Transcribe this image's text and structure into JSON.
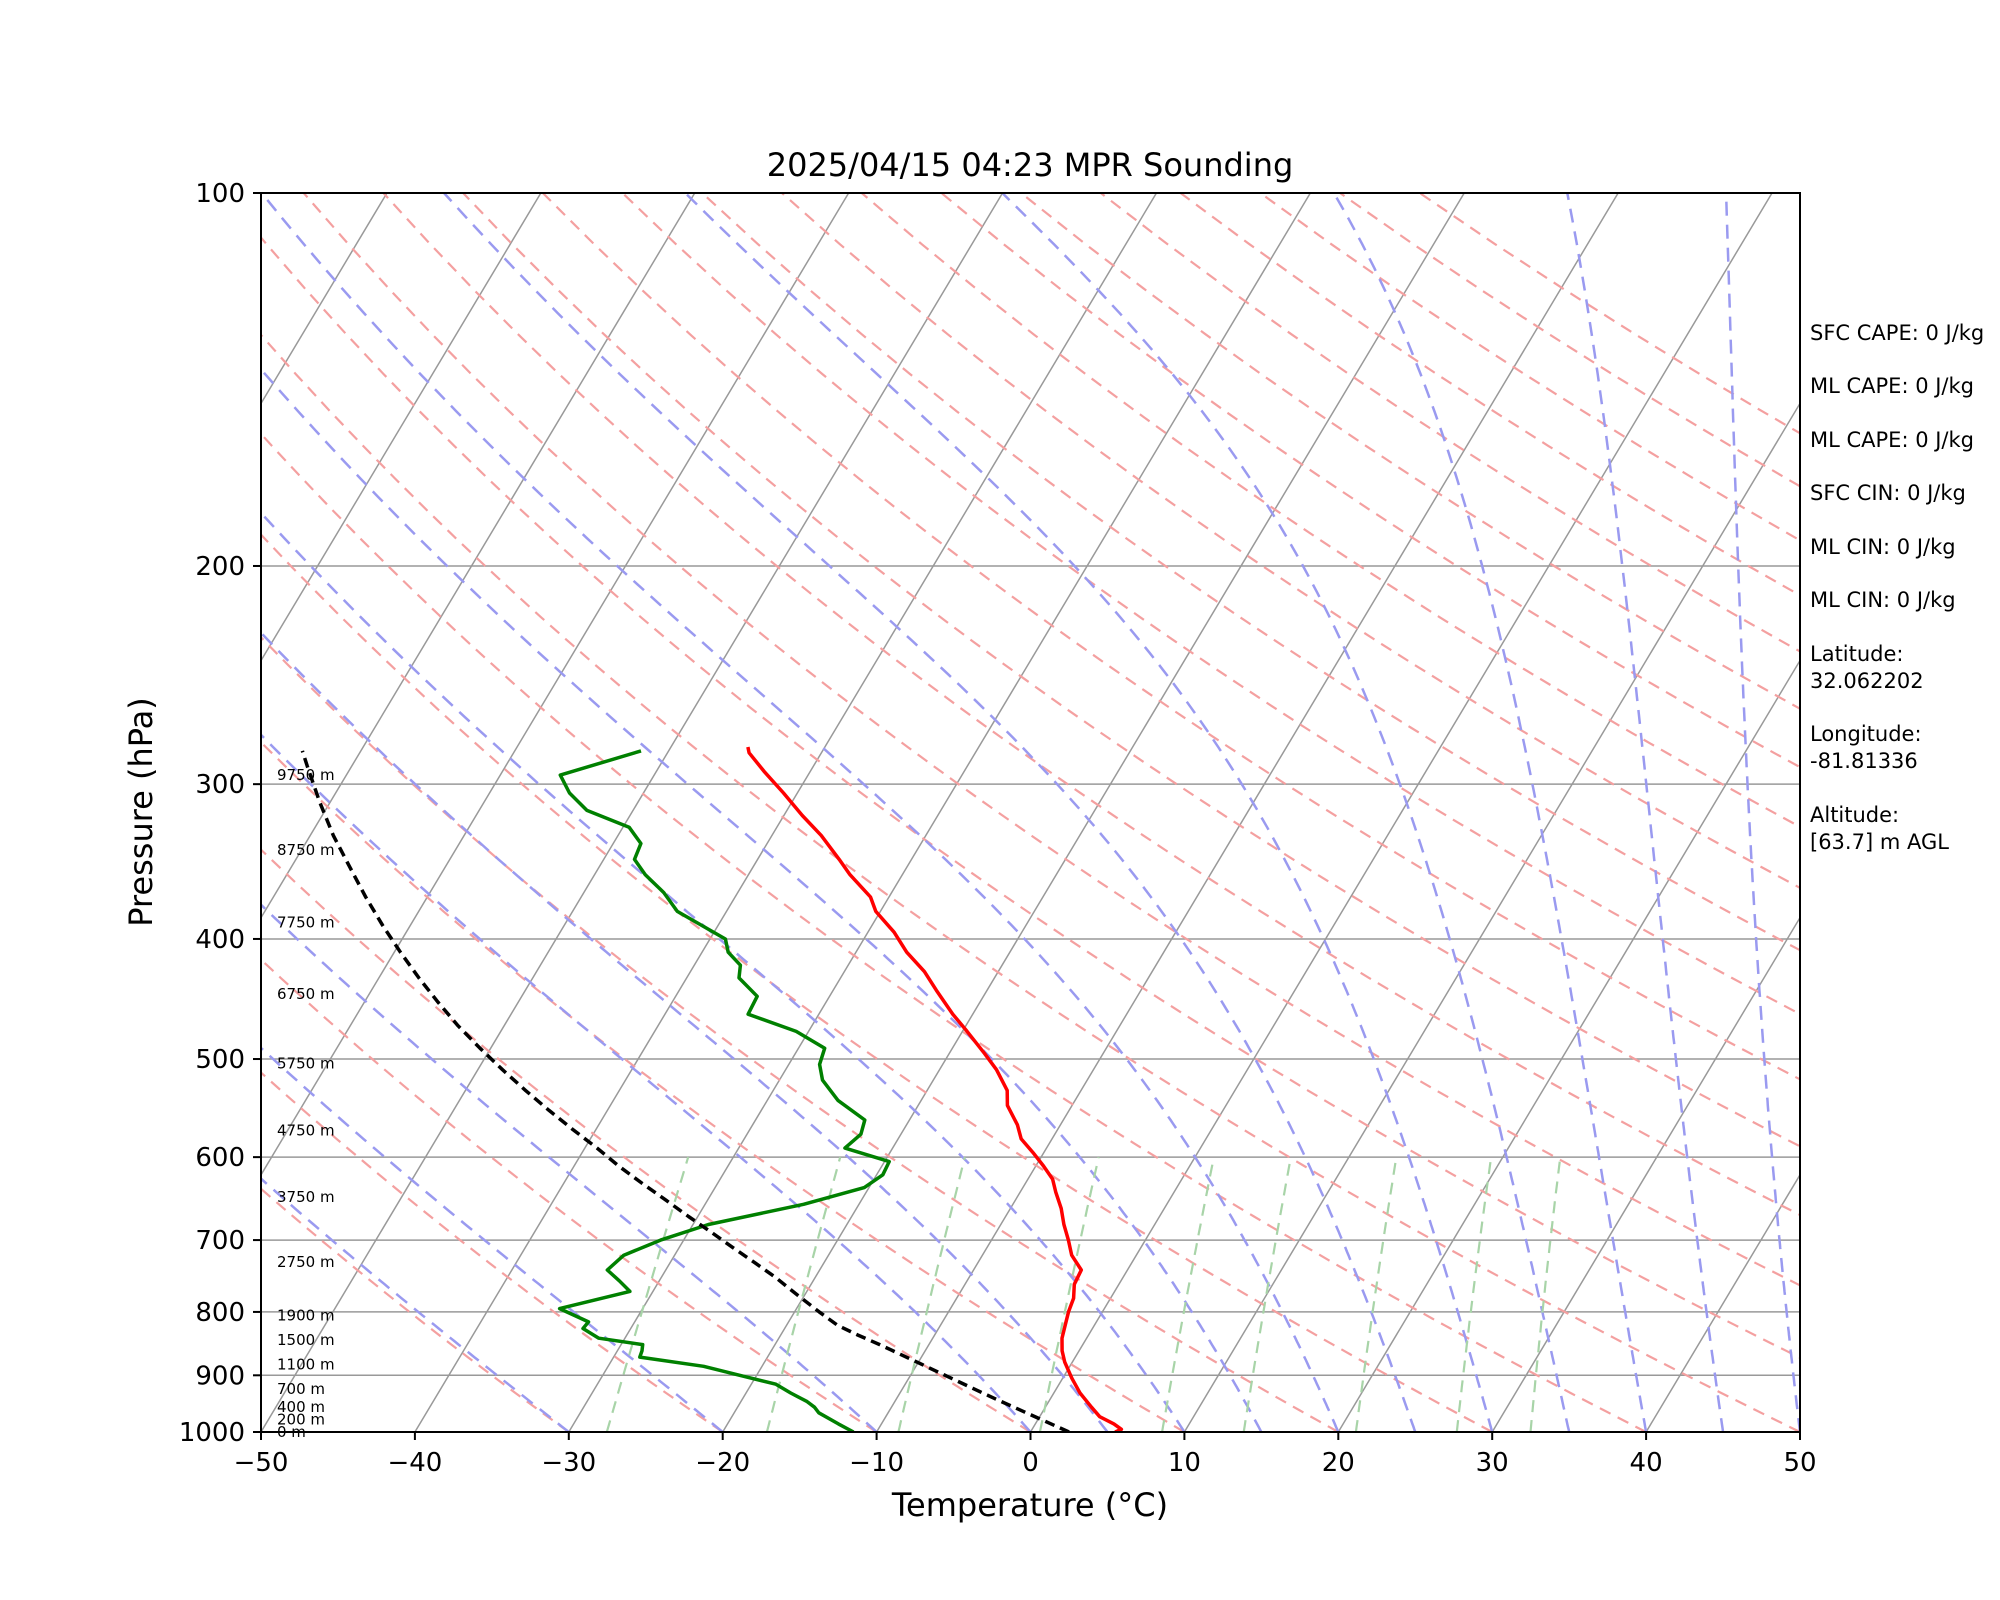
{
  "chart_data": {
    "type": "line",
    "title": "2025/04/15 04:23 MPR Sounding",
    "xlabel": "Temperature (°C)",
    "ylabel": "Pressure (hPa)",
    "xlim": [
      -50,
      50
    ],
    "ylim": [
      1000,
      100
    ],
    "y_scale": "log",
    "x_ticks": [
      "−50",
      "−40",
      "−30",
      "−20",
      "−10",
      "0",
      "10",
      "20",
      "30",
      "40",
      "50"
    ],
    "x_tick_values": [
      -50,
      -40,
      -30,
      -20,
      -10,
      0,
      10,
      20,
      30,
      40,
      50
    ],
    "y_ticks": [
      1000,
      900,
      800,
      700,
      600,
      500,
      400,
      300,
      200,
      100
    ],
    "y_grid": [
      1000,
      900,
      800,
      700,
      600,
      500,
      400,
      300,
      200,
      100
    ],
    "skew_isotherms_deg": [
      -150,
      -140,
      -130,
      -120,
      -110,
      -100,
      -90,
      -80,
      -70,
      -60,
      -50,
      -40,
      -30,
      -20,
      -10,
      0,
      10,
      20,
      30,
      40,
      50
    ],
    "dry_adiabats_c": [
      -30,
      -20,
      -10,
      0,
      10,
      20,
      30,
      40,
      50,
      60,
      70,
      80,
      90,
      100,
      110,
      120,
      130,
      140,
      150,
      160,
      170,
      180,
      190,
      200,
      210
    ],
    "moist_adiabats_c": [
      -30,
      -20,
      -10,
      0,
      5,
      10,
      15,
      20,
      25,
      30,
      35,
      40,
      45,
      50
    ],
    "mixing_ratios_gkg": [
      0.4,
      1,
      2,
      4,
      7,
      10,
      16,
      24,
      32
    ],
    "series": [
      {
        "color": "#ff0000",
        "points": [
          [
            5.5,
            1000
          ],
          [
            5.8,
            995
          ],
          [
            5.1,
            985
          ],
          [
            3.9,
            972
          ],
          [
            3.0,
            955
          ],
          [
            1.7,
            930
          ],
          [
            0.6,
            905
          ],
          [
            -0.5,
            878
          ],
          [
            -1.1,
            860
          ],
          [
            -1.6,
            840
          ],
          [
            -1.9,
            820
          ],
          [
            -2.2,
            800
          ],
          [
            -2.4,
            780
          ],
          [
            -2.9,
            760
          ],
          [
            -3.0,
            740
          ],
          [
            -4.2,
            720
          ],
          [
            -5.0,
            700
          ],
          [
            -5.9,
            680
          ],
          [
            -6.7,
            660
          ],
          [
            -7.7,
            640
          ],
          [
            -8.4,
            625
          ],
          [
            -9.5,
            610
          ],
          [
            -10.7,
            595
          ],
          [
            -12.0,
            580
          ],
          [
            -12.8,
            565
          ],
          [
            -14.2,
            545
          ],
          [
            -14.8,
            530
          ],
          [
            -16.3,
            510
          ],
          [
            -17.7,
            495
          ],
          [
            -19.7,
            475
          ],
          [
            -21.3,
            460
          ],
          [
            -23.3,
            440
          ],
          [
            -24.8,
            425
          ],
          [
            -26.7,
            410
          ],
          [
            -28.3,
            395
          ],
          [
            -30.3,
            380
          ],
          [
            -31.2,
            370
          ],
          [
            -33.4,
            355
          ],
          [
            -34.7,
            345
          ],
          [
            -36.8,
            330
          ],
          [
            -38.8,
            318
          ],
          [
            -40.9,
            305
          ],
          [
            -43.0,
            293
          ],
          [
            -44.7,
            283
          ],
          [
            -45.0,
            280
          ]
        ]
      },
      {
        "color": "#008000",
        "points": [
          [
            -11.5,
            1000
          ],
          [
            -12.8,
            985
          ],
          [
            -14.5,
            965
          ],
          [
            -15.0,
            955
          ],
          [
            -15.7,
            945
          ],
          [
            -17.1,
            930
          ],
          [
            -18.4,
            915
          ],
          [
            -21.1,
            900
          ],
          [
            -23.8,
            885
          ],
          [
            -28.3,
            870
          ],
          [
            -28.4,
            860
          ],
          [
            -28.6,
            850
          ],
          [
            -31.7,
            840
          ],
          [
            -33.1,
            825
          ],
          [
            -33.0,
            815
          ],
          [
            -35.4,
            795
          ],
          [
            -31.5,
            770
          ],
          [
            -32.6,
            755
          ],
          [
            -33.8,
            740
          ],
          [
            -33.3,
            720
          ],
          [
            -31.5,
            700
          ],
          [
            -29.0,
            680
          ],
          [
            -23.6,
            655
          ],
          [
            -20.3,
            635
          ],
          [
            -19.6,
            620
          ],
          [
            -19.7,
            605
          ],
          [
            -23.1,
            590
          ],
          [
            -22.6,
            575
          ],
          [
            -22.9,
            560
          ],
          [
            -25.4,
            540
          ],
          [
            -27.2,
            520
          ],
          [
            -28.0,
            505
          ],
          [
            -28.3,
            490
          ],
          [
            -30.8,
            475
          ],
          [
            -34.6,
            460
          ],
          [
            -34.7,
            445
          ],
          [
            -36.6,
            430
          ],
          [
            -37.0,
            420
          ],
          [
            -38.3,
            410
          ],
          [
            -39.0,
            400
          ],
          [
            -43.2,
            380
          ],
          [
            -44.8,
            367
          ],
          [
            -46.7,
            355
          ],
          [
            -48.0,
            345
          ],
          [
            -48.2,
            335
          ],
          [
            -49.6,
            325
          ],
          [
            -53.0,
            315
          ],
          [
            -54.8,
            305
          ],
          [
            -56.1,
            295
          ],
          [
            -51.8,
            282
          ]
        ]
      },
      {
        "color": "#000000",
        "dashed": true,
        "points": [
          [
            2.5,
            1000
          ],
          [
            -0.5,
            970
          ],
          [
            -3.6,
            940
          ],
          [
            -6.7,
            910
          ],
          [
            -9.9,
            880
          ],
          [
            -13.2,
            850
          ],
          [
            -15.0,
            835
          ],
          [
            -16.7,
            820
          ],
          [
            -18.4,
            800
          ],
          [
            -20.5,
            775
          ],
          [
            -22.6,
            750
          ],
          [
            -24.5,
            730
          ],
          [
            -26.5,
            710
          ],
          [
            -28.5,
            690
          ],
          [
            -30.6,
            670
          ],
          [
            -32.7,
            650
          ],
          [
            -34.9,
            630
          ],
          [
            -37.1,
            610
          ],
          [
            -39.2,
            590
          ],
          [
            -41.5,
            570
          ],
          [
            -43.8,
            550
          ],
          [
            -46.1,
            530
          ],
          [
            -48.4,
            510
          ],
          [
            -50.7,
            490
          ],
          [
            -53.0,
            470
          ],
          [
            -55.2,
            450
          ],
          [
            -57.4,
            430
          ],
          [
            -59.6,
            410
          ],
          [
            -61.8,
            390
          ],
          [
            -64.0,
            370
          ],
          [
            -66.2,
            350
          ],
          [
            -68.5,
            330
          ],
          [
            -70.7,
            310
          ],
          [
            -72.9,
            290
          ],
          [
            -73.8,
            282
          ]
        ]
      }
    ]
  },
  "height_labels": [
    {
      "text": "0 m",
      "p": 1000
    },
    {
      "text": "200 m",
      "p": 977
    },
    {
      "text": "400 m",
      "p": 955
    },
    {
      "text": "700 m",
      "p": 923
    },
    {
      "text": "1100 m",
      "p": 882
    },
    {
      "text": "1500 m",
      "p": 843
    },
    {
      "text": "1900 m",
      "p": 805
    },
    {
      "text": "2750 m",
      "p": 729
    },
    {
      "text": "3750 m",
      "p": 646
    },
    {
      "text": "4750 m",
      "p": 571
    },
    {
      "text": "5750 m",
      "p": 504
    },
    {
      "text": "6750 m",
      "p": 443
    },
    {
      "text": "7750 m",
      "p": 388
    },
    {
      "text": "8750 m",
      "p": 339
    },
    {
      "text": "9750 m",
      "p": 295
    }
  ],
  "info": {
    "sfc_cape": "SFC CAPE: 0 J/kg",
    "ml_cape_1": "ML CAPE: 0 J/kg",
    "ml_cape_2": "ML CAPE: 0 J/kg",
    "sfc_cin": "SFC CIN: 0 J/kg",
    "ml_cin_1": "ML CIN: 0 J/kg",
    "ml_cin_2": "ML CIN: 0 J/kg",
    "latitude_label": "Latitude:",
    "latitude_value": "32.062202",
    "longitude_label": "Longitude:",
    "longitude_value": "-81.81336",
    "altitude_label": "Altitude:",
    "altitude_value": "[63.7] m AGL"
  },
  "colors": {
    "temperature": "#ff0000",
    "dewpoint": "#008000",
    "parcel": "#000000",
    "dry_adiabat": "#f4a0a0",
    "moist_adiabat": "#9a9af0",
    "mixing_ratio": "#a8d4a8",
    "isotherm": "#999999",
    "isobar": "#999999"
  }
}
